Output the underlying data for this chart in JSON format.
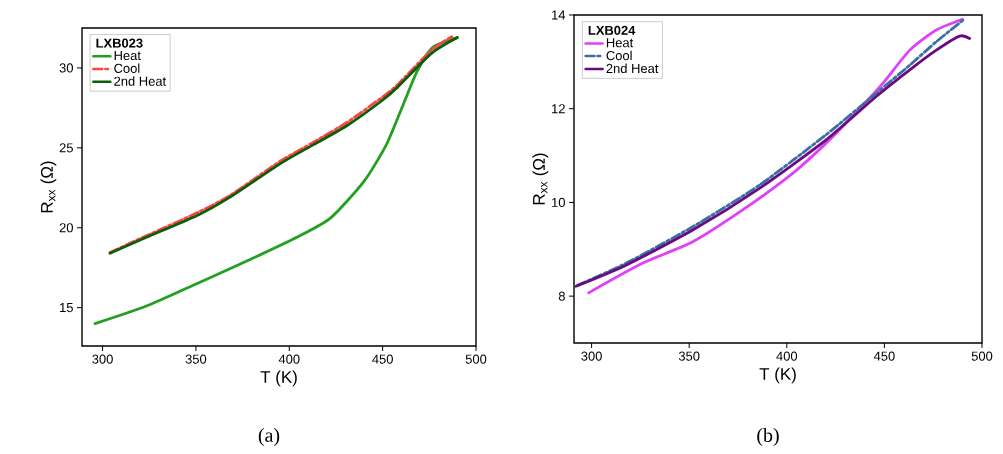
{
  "chart_data": [
    {
      "type": "line",
      "xlabel": "T (K)",
      "ylabel": "R$_{xx}$ (Ω)",
      "legend_title": "LXB023",
      "legend": "top left",
      "grid": false,
      "xlim": [
        289,
        500
      ],
      "ylim": [
        12.6,
        32.5
      ],
      "xticks": [
        300,
        350,
        400,
        450,
        500
      ],
      "yticks": [
        15,
        20,
        25,
        30
      ],
      "annotations": [
        "(a)"
      ],
      "series": [
        {
          "name": "Heat",
          "color": "#22a022",
          "line_style": "solid",
          "x": [
            296,
            323.5,
            350.4,
            377,
            404,
            422,
            440,
            452,
            461,
            468.5,
            477,
            490
          ],
          "values": [
            14.0,
            15.1,
            16.5,
            17.9,
            19.4,
            20.6,
            22.9,
            25.2,
            27.7,
            29.8,
            31.3,
            31.9
          ]
        },
        {
          "name": "Cool",
          "color": "#ff4242",
          "line_style": "dashdot",
          "x": [
            304,
            323.5,
            350,
            368,
            395,
            413,
            431,
            449,
            458,
            476,
            487
          ],
          "values": [
            18.45,
            19.5,
            20.9,
            22.0,
            24.15,
            25.35,
            26.6,
            28.1,
            28.95,
            31.1,
            31.95
          ]
        },
        {
          "name": "2nd Heat",
          "color": "#0b5e0b",
          "line_style": "solid",
          "x": [
            304,
            323.5,
            350.4,
            368,
            395,
            413,
            431,
            449,
            458,
            476,
            490
          ],
          "values": [
            18.4,
            19.4,
            20.75,
            21.9,
            24.0,
            25.2,
            26.4,
            27.9,
            28.8,
            30.9,
            31.9
          ]
        }
      ]
    },
    {
      "type": "line",
      "xlabel": "T (K)",
      "ylabel": "R$_{xx}$ (Ω)",
      "legend_title": "LXB024",
      "legend": "top left",
      "grid": false,
      "xlim": [
        291,
        500
      ],
      "ylim": [
        7,
        14
      ],
      "xticks": [
        300,
        350,
        400,
        450,
        500
      ],
      "yticks": [
        8,
        10,
        12,
        14
      ],
      "annotations": [
        "(b)"
      ],
      "series": [
        {
          "name": "Heat",
          "color": "#e040fb",
          "line_style": "solid",
          "x": [
            298.5,
            326,
            351.8,
            377.4,
            403,
            420,
            437.3,
            449.2,
            463,
            476.6,
            490
          ],
          "values": [
            8.07,
            8.7,
            9.16,
            9.84,
            10.62,
            11.26,
            12.0,
            12.54,
            13.25,
            13.68,
            13.91
          ]
        },
        {
          "name": "Cool",
          "color": "#3a6ea5",
          "line_style": "dashdot",
          "x": [
            292.8,
            317.6,
            351.8,
            386,
            420,
            445.8,
            463,
            476.6,
            490.3
          ],
          "values": [
            8.23,
            8.7,
            9.48,
            10.37,
            11.44,
            12.33,
            12.93,
            13.43,
            13.89
          ]
        },
        {
          "name": "2nd Heat",
          "color": "#6a0a80",
          "line_style": "solid",
          "x": [
            292,
            317.6,
            351.8,
            386,
            420,
            445.8,
            463,
            476.6,
            488.5,
            493.7
          ],
          "values": [
            8.21,
            8.66,
            9.41,
            10.3,
            11.33,
            12.26,
            12.83,
            13.25,
            13.55,
            13.5
          ]
        }
      ]
    }
  ]
}
